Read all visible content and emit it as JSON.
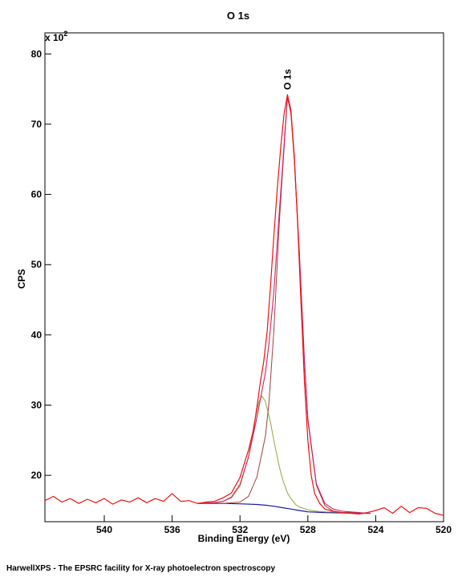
{
  "footer": "HarwellXPS - The EPSRC facility for X-ray photoelectron spectroscopy",
  "chart_data": {
    "type": "line",
    "title": "O 1s",
    "xlabel": "Binding Energy (eV)",
    "ylabel": "CPS",
    "y_multiplier": {
      "base": "x 10",
      "exponent": "2"
    },
    "xlim": [
      543.5,
      520
    ],
    "x_reversed": true,
    "ylim": [
      13.4,
      83
    ],
    "x_ticks": [
      540,
      536,
      532,
      528,
      524,
      520
    ],
    "y_ticks": [
      20,
      30,
      40,
      50,
      60,
      70,
      80
    ],
    "grid": false,
    "legend": "none",
    "annotations": [
      {
        "text": "O 1s",
        "x": 529.2,
        "y": 74.2,
        "orientation": "vertical"
      }
    ],
    "colors": {
      "raw": "#ee1111",
      "envelope": "#cc2266",
      "peak_main": "#a04040",
      "peak_shoulder": "#8aa83a",
      "background": "#1a1aa0"
    },
    "series": [
      {
        "kind": "raw",
        "x": [
          543.5,
          543.0,
          542.5,
          542.0,
          541.5,
          541.0,
          540.5,
          540.0,
          539.5,
          539.0,
          538.5,
          538.0,
          537.5,
          537.0,
          536.5,
          536.0,
          535.5,
          535.0,
          534.5,
          534.0,
          533.5,
          533.0,
          532.5,
          532.0,
          531.5,
          531.2,
          531.0,
          530.8,
          530.6,
          530.4,
          530.2,
          530.0,
          529.8,
          529.6,
          529.4,
          529.2,
          529.0,
          528.8,
          528.6,
          528.4,
          528.2,
          528.0,
          527.8,
          527.6,
          527.3,
          527.0,
          526.5,
          526.0,
          525.5,
          525.0,
          524.5,
          524.0,
          523.5,
          523.0,
          522.5,
          522.0,
          521.5,
          521.0,
          520.5,
          520.0
        ],
        "y": [
          16.4,
          17.0,
          16.2,
          16.7,
          16.0,
          16.6,
          16.1,
          16.7,
          15.9,
          16.5,
          16.2,
          16.8,
          16.1,
          16.7,
          16.3,
          17.4,
          16.3,
          16.4,
          16.0,
          16.2,
          16.3,
          16.8,
          17.5,
          19.7,
          23.6,
          26.5,
          29.8,
          33.3,
          36.2,
          40.5,
          47.0,
          54.2,
          60.8,
          66.7,
          71.5,
          74.2,
          72.0,
          65.5,
          55.8,
          44.5,
          33.2,
          25.0,
          20.0,
          17.4,
          16.0,
          15.2,
          14.9,
          14.7,
          14.6,
          14.5,
          14.7,
          15.0,
          15.4,
          14.6,
          15.6,
          14.7,
          15.4,
          15.3,
          14.6,
          14.3
        ]
      },
      {
        "kind": "envelope",
        "x": [
          534.5,
          533.5,
          533.0,
          532.5,
          532.0,
          531.5,
          531.0,
          530.5,
          530.3,
          530.0,
          529.7,
          529.5,
          529.2,
          529.0,
          528.8,
          528.5,
          528.2,
          528.0,
          527.5,
          527.0,
          526.5,
          526.0,
          525.5,
          525.0,
          524.5,
          524.3
        ],
        "y": [
          16.0,
          16.1,
          16.3,
          16.9,
          18.7,
          22.6,
          28.3,
          34.6,
          38.6,
          46.2,
          57.0,
          63.7,
          74.0,
          71.7,
          65.2,
          51.8,
          36.3,
          28.1,
          18.8,
          16.0,
          15.2,
          14.9,
          14.8,
          14.7,
          14.6,
          14.6
        ]
      },
      {
        "kind": "peak_main",
        "x": [
          534.5,
          533.0,
          532.0,
          531.5,
          531.0,
          530.5,
          530.3,
          530.0,
          529.7,
          529.5,
          529.2,
          529.0,
          528.8,
          528.5,
          528.2,
          528.0,
          527.5,
          527.0,
          526.5,
          526.0,
          525.5,
          525.0,
          524.5,
          524.3
        ],
        "y": [
          16.0,
          16.0,
          16.2,
          17.0,
          19.8,
          25.6,
          30.2,
          40.7,
          55.3,
          63.0,
          73.8,
          71.5,
          64.9,
          51.5,
          36.0,
          27.8,
          18.6,
          15.7,
          14.9,
          14.7,
          14.7,
          14.6,
          14.6,
          14.6
        ]
      },
      {
        "kind": "peak_shoulder",
        "x": [
          534.5,
          533.5,
          533.0,
          532.5,
          532.0,
          531.5,
          531.2,
          530.9,
          530.7,
          530.5,
          530.2,
          530.0,
          529.7,
          529.5,
          529.2,
          529.0,
          528.7,
          528.5,
          528.0,
          527.5,
          527.0,
          526.5,
          526.0,
          525.5,
          525.0,
          524.5,
          524.3
        ],
        "y": [
          16.0,
          16.1,
          16.3,
          16.8,
          18.5,
          22.6,
          26.9,
          30.4,
          31.3,
          30.5,
          27.5,
          24.9,
          21.4,
          19.5,
          17.5,
          16.7,
          15.8,
          15.5,
          15.1,
          14.9,
          14.8,
          14.8,
          14.7,
          14.7,
          14.6,
          14.6,
          14.6
        ]
      },
      {
        "kind": "background",
        "x": [
          534.5,
          533.0,
          532.0,
          531.0,
          530.5,
          530.0,
          529.5,
          529.0,
          528.5,
          528.0,
          527.0,
          526.0,
          525.0,
          524.3
        ],
        "y": [
          16.0,
          16.0,
          15.95,
          15.85,
          15.75,
          15.6,
          15.4,
          15.2,
          15.0,
          14.8,
          14.7,
          14.65,
          14.6,
          14.6
        ]
      }
    ]
  }
}
